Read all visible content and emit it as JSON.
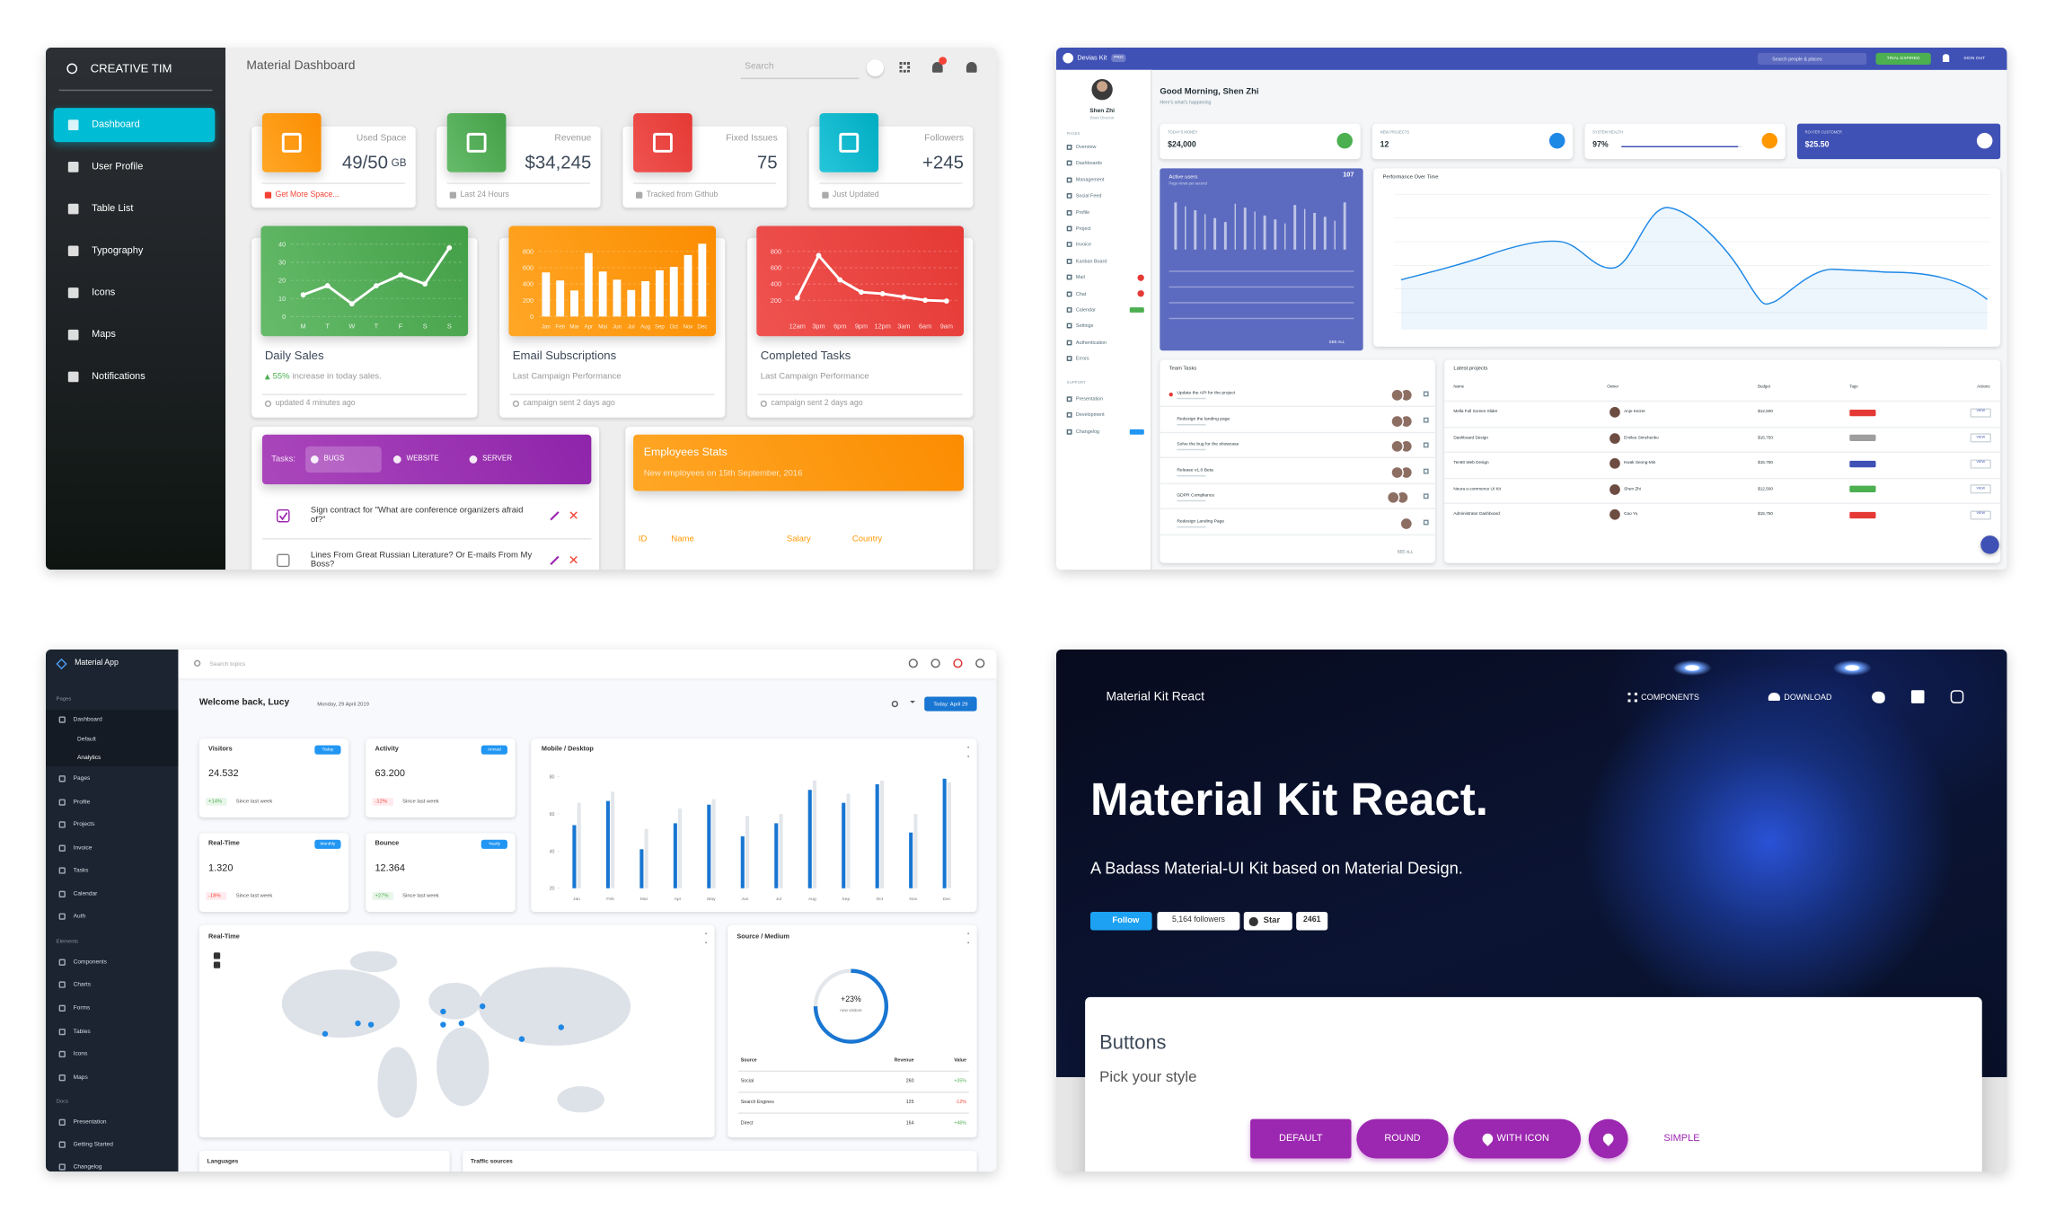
{
  "dashboard": {
    "brand": "CREATIVE TIM",
    "nav": [
      "Dashboard",
      "User Profile",
      "Table List",
      "Typography",
      "Icons",
      "Maps",
      "Notifications"
    ],
    "header": "Material Dashboard",
    "search": "Search",
    "stats": [
      {
        "label": "Used Space",
        "value": "49/50",
        "unit": "GB",
        "footer": "Get More Space..."
      },
      {
        "label": "Revenue",
        "value": "$34,245",
        "footer": "Last 24 Hours"
      },
      {
        "label": "Fixed Issues",
        "value": "75",
        "footer": "Tracked from Github"
      },
      {
        "label": "Followers",
        "value": "+245",
        "footer": "Just Updated"
      }
    ],
    "charts": [
      {
        "type": "line",
        "color": "#4caf50",
        "title": "Daily Sales",
        "highlight": "55%",
        "subtitle": "increase in today sales.",
        "footer": "updated 4 minutes ago",
        "categories": [
          "M",
          "T",
          "W",
          "T",
          "F",
          "S",
          "S"
        ],
        "values": [
          12,
          17,
          7,
          17,
          23,
          18,
          38
        ],
        "ylim": [
          0,
          45
        ],
        "yticks": [
          0,
          10,
          20,
          30,
          40
        ]
      },
      {
        "type": "bar",
        "color": "#fb8c00",
        "title": "Email Subscriptions",
        "subtitle": "Last Campaign Performance",
        "footer": "campaign sent 2 days ago",
        "categories": [
          "Jan",
          "Feb",
          "Mar",
          "Apr",
          "Mai",
          "Jun",
          "Jul",
          "Aug",
          "Sep",
          "Oct",
          "Nov",
          "Dec"
        ],
        "values": [
          542,
          443,
          320,
          780,
          553,
          453,
          326,
          434,
          568,
          610,
          756,
          895
        ],
        "ylim": [
          0,
          1000
        ],
        "yticks": [
          0,
          200,
          400,
          600,
          800
        ]
      },
      {
        "type": "line",
        "color": "#e53935",
        "title": "Completed Tasks",
        "subtitle": "Last Campaign Performance",
        "footer": "campaign sent 2 days ago",
        "categories": [
          "12am",
          "3pm",
          "6pm",
          "9pm",
          "12pm",
          "3am",
          "6am",
          "9am"
        ],
        "values": [
          230,
          750,
          450,
          300,
          280,
          240,
          200,
          190
        ],
        "ylim": [
          0,
          1000
        ],
        "yticks": [
          200,
          400,
          600,
          800
        ]
      }
    ],
    "tasks": {
      "label": "Tasks:",
      "tabs": [
        "BUGS",
        "WEBSITE",
        "SERVER"
      ],
      "items": [
        "Sign contract for \"What are conference organizers afraid of?\"",
        "Lines From Great Russian Literature? Or E-mails From My Boss?"
      ]
    },
    "employees": {
      "title": "Employees Stats",
      "subtitle": "New employees on 15th September, 2016",
      "columns": [
        "ID",
        "Name",
        "Salary",
        "Country"
      ]
    }
  },
  "devias": {
    "brand": "Devias Kit",
    "badge": "PRO",
    "search": "Search people & places",
    "trial": "TRIAL EXPIRED",
    "signout": "SIGN OUT",
    "user": "Shen Zhi",
    "role": "Brain Director",
    "nav_heading": "PAGES",
    "nav": [
      "Overview",
      "Dashboards",
      "Management",
      "Social Feed",
      "Profile",
      "Project",
      "Invoice",
      "Kanban Board",
      "Mail",
      "Chat",
      "Calendar",
      "Settings",
      "Authentication",
      "Errors"
    ],
    "support_heading": "SUPPORT",
    "support": [
      "Presentation",
      "Development",
      "Changelog"
    ],
    "greeting": "Good Morning, Shen Zhi",
    "greeting_sub": "Here's what's happening",
    "stats": [
      {
        "label": "TODAY'S MONEY",
        "value": "$24,000"
      },
      {
        "label": "NEW PROJECTS",
        "value": "12"
      },
      {
        "label": "SYSTEM HEALTH",
        "value": "97%"
      },
      {
        "label": "ROI PER CUSTOMER",
        "value": "$25.50"
      }
    ],
    "active_users": {
      "title": "Active users",
      "subtitle": "Page views per second",
      "value": "107"
    },
    "see_all": "SEE ALL",
    "performance": "Performance Over Time",
    "team_tasks": {
      "title": "Team Tasks",
      "items": [
        "Update the API for the project",
        "Redesign the landing page",
        "Solve the bug for the showcase",
        "Release v1.0 Beta",
        "GDPR Compliance",
        "Redesign Landing Page"
      ]
    },
    "projects": {
      "title": "Latest projects",
      "columns": [
        "Name",
        "Owner",
        "Budget",
        "Tags",
        "Actions"
      ],
      "rows": [
        [
          "Mella Full Screen Slider",
          "Anje Keizer",
          "$12,500"
        ],
        [
          "Dashboard Design",
          "Emilee Simchenko",
          "$15,750"
        ],
        [
          "Ten80 Web Design",
          "Kwak Seong-Min",
          "$15,750"
        ],
        [
          "Neura e-commerce UI Kit",
          "Shen Zhi",
          "$12,500"
        ],
        [
          "Administrator Dashboard",
          "Cao Yu",
          "$15,750"
        ]
      ],
      "action": "VIEW"
    }
  },
  "material_app": {
    "brand": "Material App",
    "search": "Search topics",
    "greeting": "Welcome back, Lucy",
    "date": "Monday, 29 April 2019",
    "today": "Today: April 29",
    "nav_sections": [
      {
        "heading": "Pages",
        "items": [
          "Dashboard",
          "Default",
          "Analytics",
          "Pages",
          "Profile",
          "Projects",
          "Invoice",
          "Tasks",
          "Calendar",
          "Auth"
        ]
      },
      {
        "heading": "Elements",
        "items": [
          "Components",
          "Charts",
          "Forms",
          "Tables",
          "Icons",
          "Maps"
        ]
      },
      {
        "heading": "Docs",
        "items": [
          "Presentation",
          "Getting Started",
          "Changelog"
        ]
      }
    ],
    "stats": [
      {
        "title": "Visitors",
        "badge": "Today",
        "value": "24.532",
        "change": "+14%",
        "note": "Since last week"
      },
      {
        "title": "Activity",
        "badge": "Annual",
        "value": "63.200",
        "change": "-12%",
        "note": "Since last week"
      },
      {
        "title": "Real-Time",
        "badge": "Monthly",
        "value": "1.320",
        "change": "-18%",
        "note": "Since last week"
      },
      {
        "title": "Bounce",
        "badge": "Yearly",
        "value": "12.364",
        "change": "+27%",
        "note": "Since last week"
      }
    ],
    "chart": {
      "type": "bar",
      "title": "Mobile / Desktop",
      "categories": [
        "Jan",
        "Feb",
        "Mar",
        "Apr",
        "May",
        "Jun",
        "Jul",
        "Aug",
        "Sep",
        "Oct",
        "Nov",
        "Dec"
      ],
      "series": [
        {
          "color": "#1976d2",
          "values": [
            54,
            67,
            41,
            55,
            65,
            48,
            55,
            73,
            66,
            76,
            50,
            79
          ]
        },
        {
          "color": "#e3e6ea",
          "values": [
            66,
            72,
            52,
            63,
            68,
            59,
            60,
            78,
            71,
            78,
            60,
            77
          ]
        }
      ],
      "ylim": [
        20,
        85
      ],
      "yticks": [
        20,
        40,
        60,
        80
      ]
    },
    "realtime": "Real-Time",
    "source": {
      "title": "Source / Medium",
      "center": "+23%",
      "center_sub": "new visitors",
      "columns": [
        "Source",
        "Revenue",
        "Value"
      ],
      "rows": [
        [
          "Social",
          "260",
          "+35%"
        ],
        [
          "Search Engines",
          "125",
          "-12%"
        ],
        [
          "Direct",
          "164",
          "+46%"
        ]
      ]
    },
    "bottom": [
      "Languages",
      "Traffic sources"
    ]
  },
  "kit": {
    "brand": "Material Kit React",
    "nav": [
      "COMPONENTS",
      "DOWNLOAD"
    ],
    "title": "Material Kit React.",
    "subtitle": "A Badass Material-UI Kit based on Material Design.",
    "follow": "Follow",
    "followers": "5,164 followers",
    "star": "Star",
    "stars": "2461",
    "section_title": "Buttons",
    "section_sub": "Pick your style",
    "buttons": [
      "DEFAULT",
      "ROUND",
      "WITH ICON",
      "SIMPLE"
    ]
  }
}
